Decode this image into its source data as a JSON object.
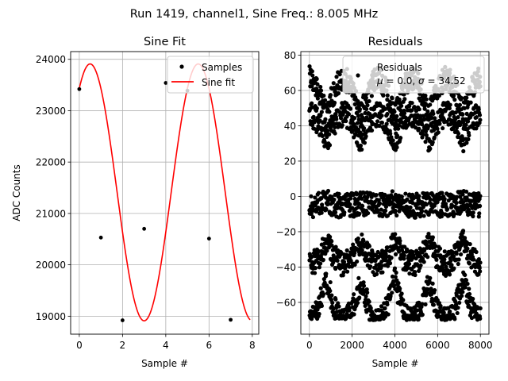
{
  "suptitle": "Run 1419, channel1, Sine Freq.: 8.005 MHz",
  "colors": {
    "fit": "#ff0000",
    "marker": "#000000",
    "grid": "#b0b0b0",
    "frame": "#000000"
  },
  "chart_data": [
    {
      "type": "scatter",
      "title": "Sine Fit",
      "xlabel": "Sample #",
      "ylabel": "ADC Counts",
      "xlim": [
        -0.4,
        8.3
      ],
      "ylim": [
        18650,
        24150
      ],
      "xticks": [
        "0",
        "2",
        "4",
        "6",
        "8"
      ],
      "xtick_values": [
        0,
        2,
        4,
        6,
        8
      ],
      "yticks": [
        "19000",
        "20000",
        "21000",
        "22000",
        "23000",
        "24000"
      ],
      "ytick_values": [
        19000,
        20000,
        21000,
        22000,
        23000,
        24000
      ],
      "grid": true,
      "legend_position": "top-right",
      "legend": [
        "Samples",
        "Sine fit"
      ],
      "series": [
        {
          "name": "Samples",
          "kind": "points",
          "x": [
            0,
            1,
            2,
            3,
            4,
            5,
            6,
            7
          ],
          "y": [
            23420,
            20530,
            18920,
            20700,
            23540,
            23390,
            20510,
            18930
          ]
        },
        {
          "name": "Sine fit",
          "kind": "line",
          "model": {
            "offset": 21410,
            "amplitude": 2500,
            "period": 5.0,
            "phase_deg": 54,
            "x_range": [
              0,
              7.9
            ]
          }
        }
      ]
    },
    {
      "type": "scatter",
      "title": "Residuals",
      "xlabel": "Sample #",
      "ylabel": "",
      "xlim": [
        -400,
        8400
      ],
      "ylim": [
        -78,
        82
      ],
      "xticks": [
        "0",
        "2000",
        "4000",
        "6000",
        "8000"
      ],
      "xtick_values": [
        0,
        2000,
        4000,
        6000,
        8000
      ],
      "yticks": [
        "−60",
        "−40",
        "−20",
        "0",
        "20",
        "40",
        "60",
        "80"
      ],
      "ytick_values": [
        -60,
        -40,
        -20,
        0,
        20,
        40,
        60,
        80
      ],
      "grid": true,
      "legend_position": "top-right",
      "legend": [
        "Residuals",
        "$\\mu$ = 0.0, $\\sigma$ = 34.52"
      ],
      "legend_text": {
        "line1": "Residuals",
        "mu": "μ",
        "mu_val": " = 0.0, ",
        "sigma": "σ",
        "sigma_val": " = 34.52"
      },
      "stats": {
        "mean": 0.0,
        "std": 34.52
      },
      "series": [
        {
          "name": "Residuals",
          "kind": "points",
          "x_range": [
            0,
            8000
          ],
          "envelope_max": 74,
          "envelope_min": -70,
          "beat_period": 1600,
          "note": "dense band of ~8000 residual points oscillating between about -70 and +74"
        }
      ]
    }
  ]
}
